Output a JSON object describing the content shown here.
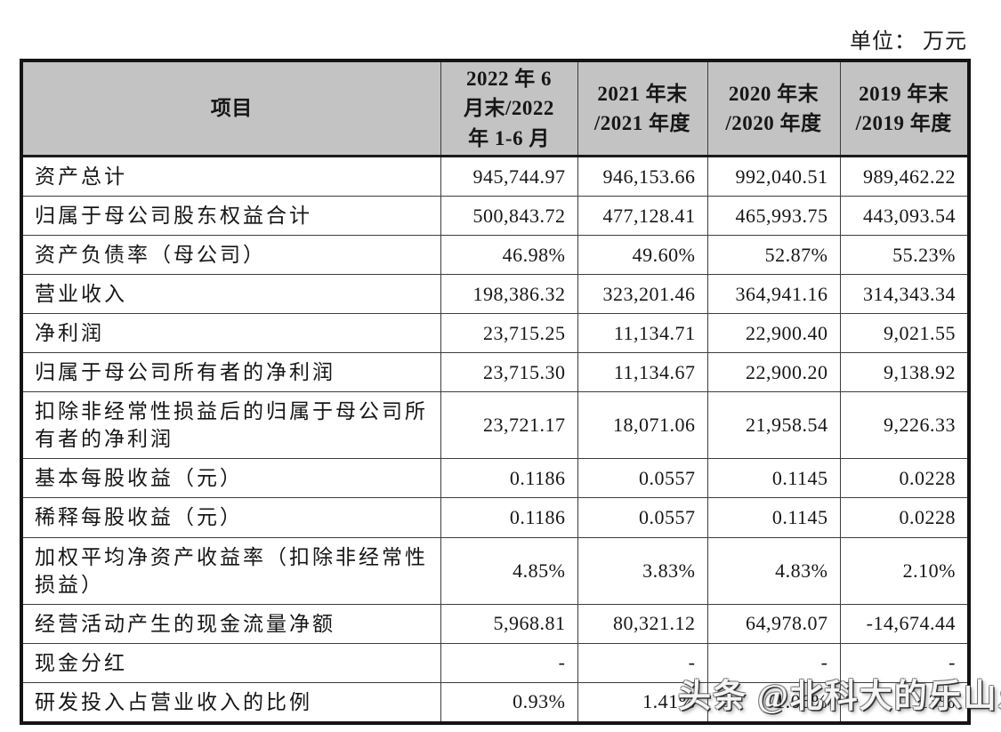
{
  "meta": {
    "unit_label": "单位： 万元"
  },
  "table": {
    "header": {
      "item_col": "项目",
      "period_cols": [
        "2022 年 6\n月末/2022\n年 1-6 月",
        "2021 年末\n/2021 年度",
        "2020 年末\n/2020 年度",
        "2019 年末\n/2019 年度"
      ]
    },
    "rows": [
      {
        "label": "资产总计",
        "values": [
          "945,744.97",
          "946,153.66",
          "992,040.51",
          "989,462.22"
        ]
      },
      {
        "label": "归属于母公司股东权益合计",
        "values": [
          "500,843.72",
          "477,128.41",
          "465,993.75",
          "443,093.54"
        ]
      },
      {
        "label": "资产负债率（母公司）",
        "values": [
          "46.98%",
          "49.60%",
          "52.87%",
          "55.23%"
        ]
      },
      {
        "label": "营业收入",
        "values": [
          "198,386.32",
          "323,201.46",
          "364,941.16",
          "314,343.34"
        ]
      },
      {
        "label": "净利润",
        "values": [
          "23,715.25",
          "11,134.71",
          "22,900.40",
          "9,021.55"
        ]
      },
      {
        "label": "归属于母公司所有者的净利润",
        "values": [
          "23,715.30",
          "11,134.67",
          "22,900.20",
          "9,138.92"
        ]
      },
      {
        "label": "扣除非经常性损益后的归属于母公司所有者的净利润",
        "values": [
          "23,721.17",
          "18,071.06",
          "21,958.54",
          "9,226.33"
        ]
      },
      {
        "label": "基本每股收益（元）",
        "values": [
          "0.1186",
          "0.0557",
          "0.1145",
          "0.0228"
        ]
      },
      {
        "label": "稀释每股收益（元）",
        "values": [
          "0.1186",
          "0.0557",
          "0.1145",
          "0.0228"
        ]
      },
      {
        "label": "加权平均净资产收益率（扣除非经常性损益）",
        "values": [
          "4.85%",
          "3.83%",
          "4.83%",
          "2.10%"
        ]
      },
      {
        "label": "经营活动产生的现金流量净额",
        "values": [
          "5,968.81",
          "80,321.12",
          "64,978.07",
          "-14,674.44"
        ]
      },
      {
        "label": "现金分红",
        "values": [
          "-",
          "-",
          "-",
          "-"
        ]
      },
      {
        "label": "研发投入占营业收入的比例",
        "values": [
          "0.93%",
          "1.41%",
          "1.06%",
          "1.13%"
        ]
      }
    ]
  },
  "watermark": {
    "text": "头条 @北科大的乐山乐水"
  },
  "colors": {
    "header_bg": "#c3c3c3",
    "outer_border": "#141414",
    "inner_border": "#3d3d3d",
    "text": "#161616",
    "watermark_fill": "#ffffff"
  }
}
